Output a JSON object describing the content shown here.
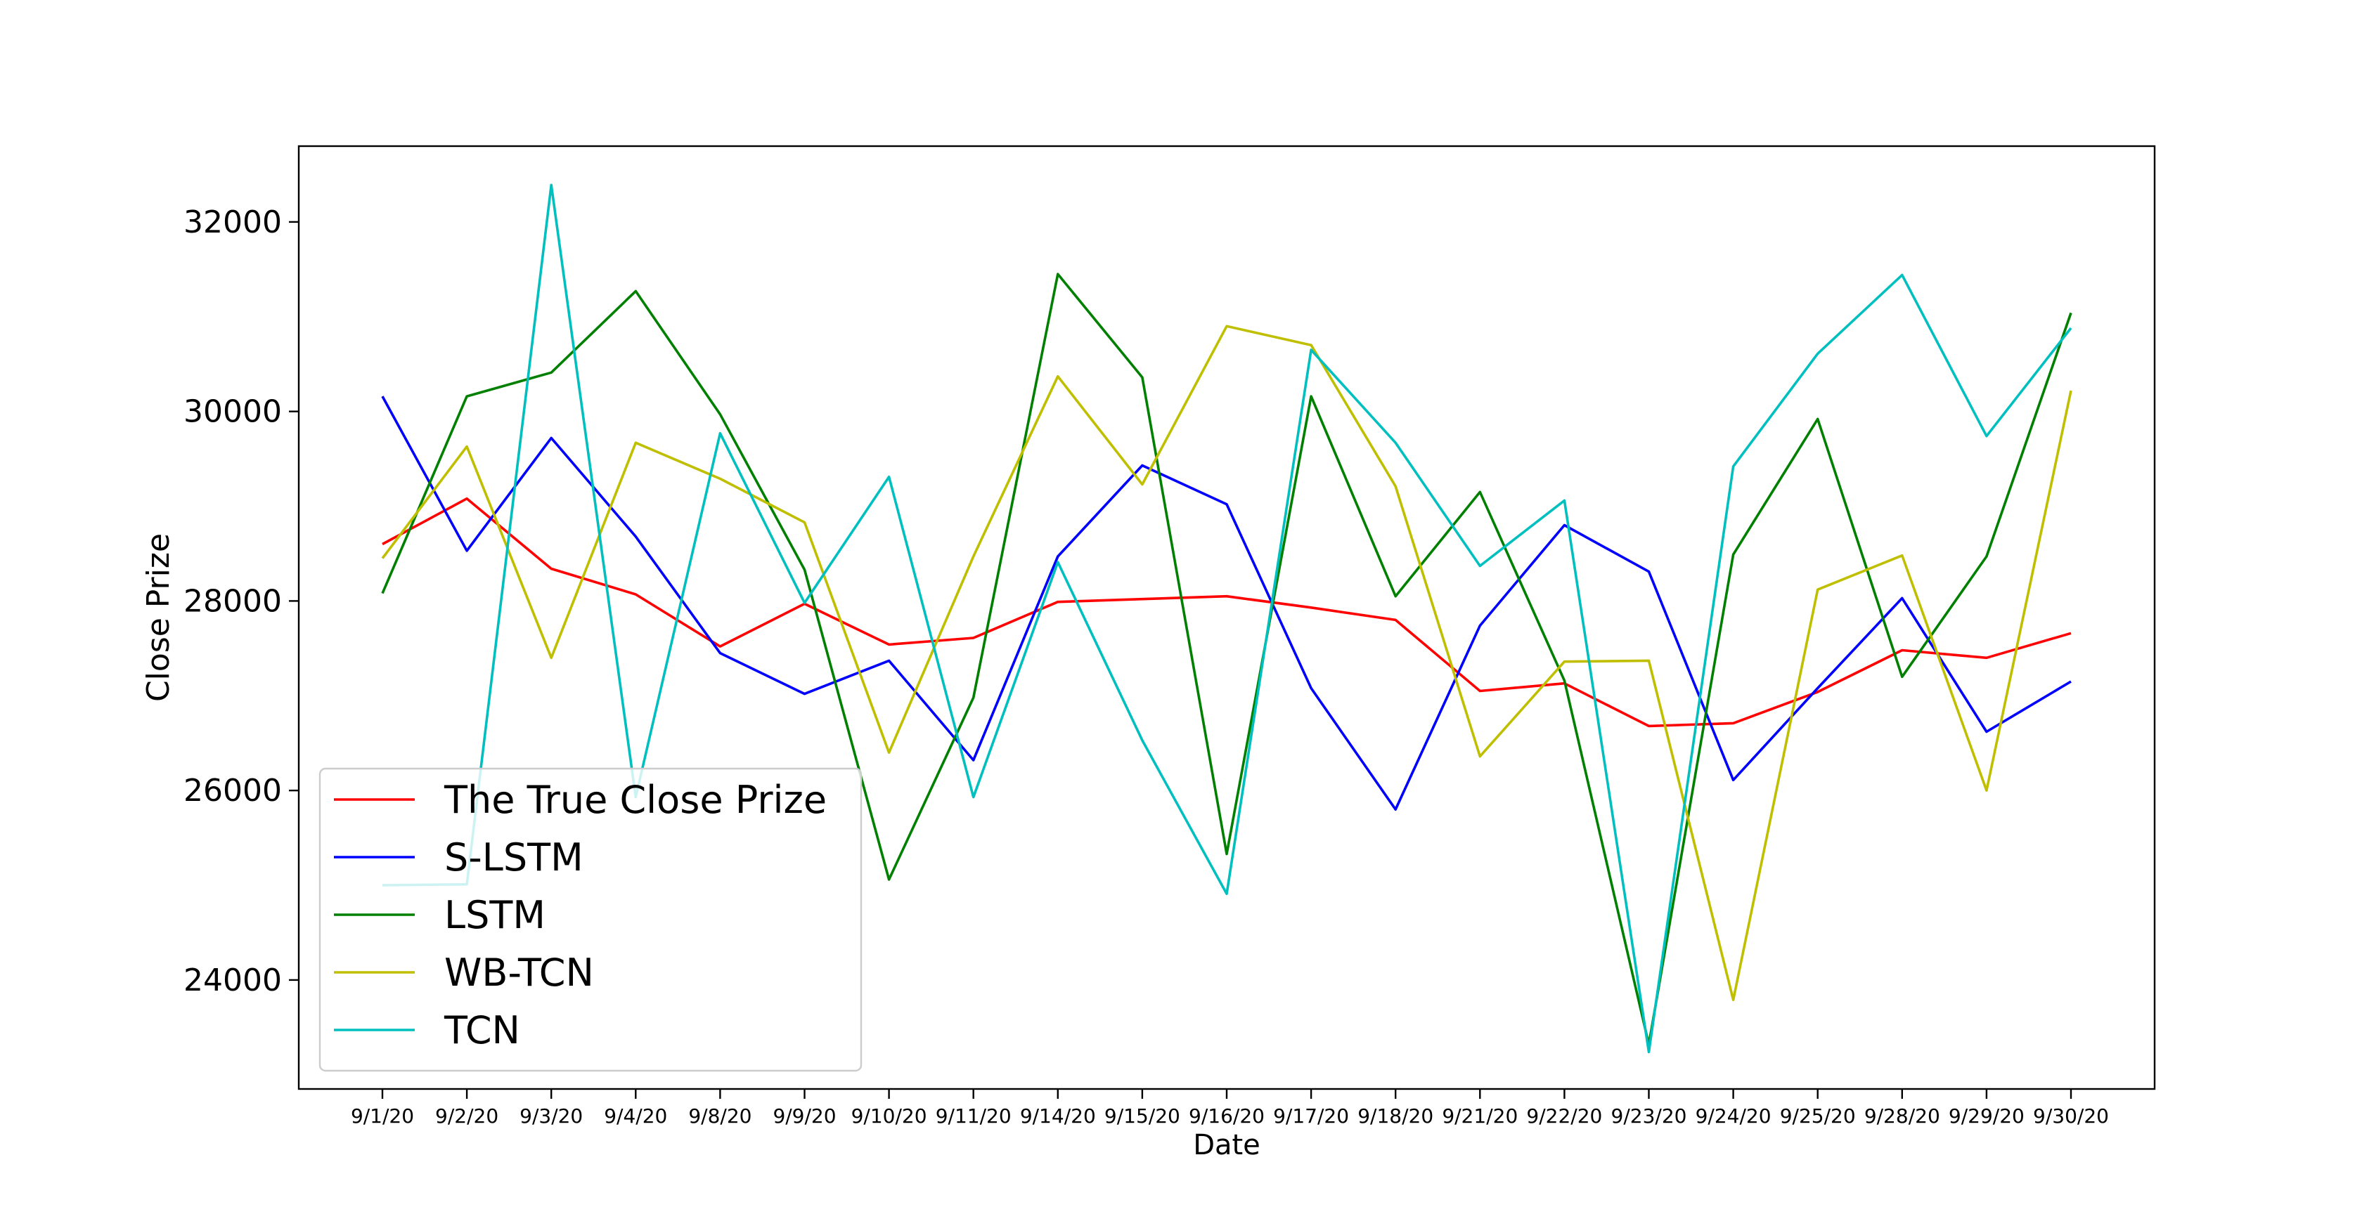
{
  "chart_data": {
    "type": "line",
    "title": "",
    "xlabel": "Date",
    "ylabel": "Close Prize",
    "ylim": [
      22850,
      32800
    ],
    "yticks": [
      24000,
      26000,
      28000,
      30000,
      32000
    ],
    "grid": false,
    "legend_position": "lower-left",
    "categories": [
      "9/1/20",
      "9/2/20",
      "9/3/20",
      "9/4/20",
      "9/8/20",
      "9/9/20",
      "9/10/20",
      "9/11/20",
      "9/14/20",
      "9/15/20",
      "9/16/20",
      "9/17/20",
      "9/18/20",
      "9/21/20",
      "9/22/20",
      "9/23/20",
      "9/24/20",
      "9/25/20",
      "9/28/20",
      "9/29/20",
      "9/30/20"
    ],
    "series": [
      {
        "name": "The True Close Prize",
        "color": "#ff0000",
        "values": [
          28600,
          29080,
          28340,
          28070,
          27520,
          27970,
          27540,
          27610,
          27990,
          28020,
          28050,
          27930,
          27800,
          27050,
          27130,
          26680,
          26710,
          27040,
          27480,
          27400,
          27660
        ]
      },
      {
        "name": "S-LSTM",
        "color": "#0000ff",
        "values": [
          30160,
          28530,
          29720,
          28680,
          27450,
          27020,
          27370,
          26320,
          28470,
          29430,
          29020,
          27080,
          25800,
          27740,
          28800,
          28310,
          26110,
          27080,
          28030,
          26620,
          27150
        ]
      },
      {
        "name": "LSTM",
        "color": "#008000",
        "values": [
          28080,
          30160,
          30410,
          31270,
          29970,
          28330,
          25060,
          26980,
          31450,
          30360,
          25330,
          30160,
          28050,
          29150,
          27160,
          23320,
          28490,
          29920,
          27200,
          28470,
          31040
        ]
      },
      {
        "name": "WB-TCN",
        "color": "#bfbf00",
        "values": [
          28450,
          29630,
          27400,
          29670,
          29290,
          28830,
          26400,
          28470,
          30370,
          29230,
          30900,
          30700,
          29210,
          26360,
          27360,
          27370,
          23790,
          28120,
          28480,
          26000,
          30220
        ]
      },
      {
        "name": "TCN",
        "color": "#00bfbf",
        "values": [
          25000,
          25010,
          32390,
          25930,
          29770,
          27980,
          29310,
          25930,
          28410,
          26530,
          24910,
          30650,
          29670,
          28370,
          29060,
          23240,
          29420,
          30610,
          31440,
          29740,
          30880
        ]
      }
    ]
  }
}
